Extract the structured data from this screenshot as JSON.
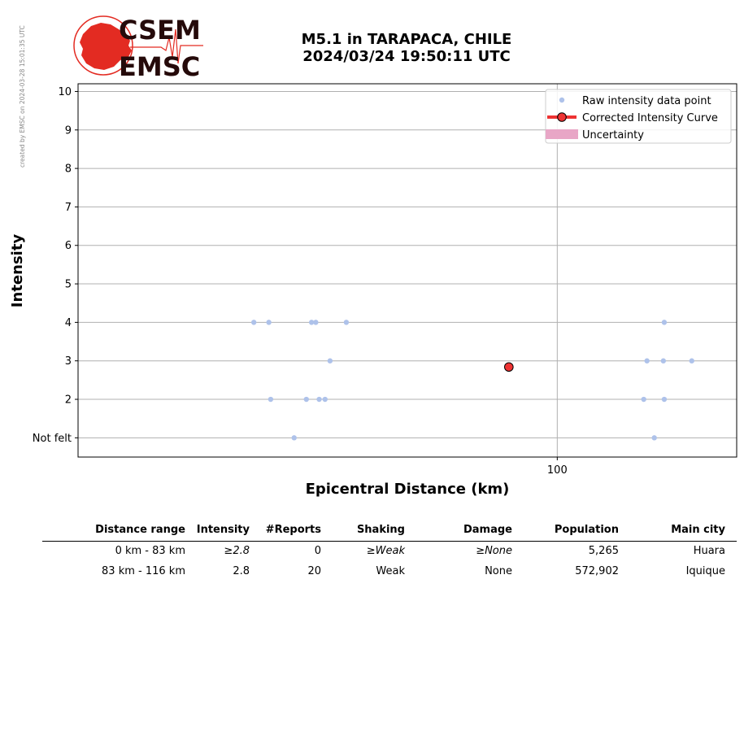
{
  "watermark": "created by EMSC on 2024-03-28 15:01:35 UTC",
  "logo": {
    "line1": "CSEM",
    "line2": "EMSC"
  },
  "title": {
    "line1": "M5.1 in TARAPACA, CHILE",
    "line2": "2024/03/24 19:50:11 UTC"
  },
  "chart_data": {
    "type": "scatter",
    "xlabel": "Epicentral Distance (km)",
    "ylabel": "Intensity",
    "x_scale": "log",
    "xlim": [
      41.5,
      139
    ],
    "ylim": [
      0.5,
      10.2
    ],
    "x_ticks": [
      {
        "value": 100,
        "label": "100"
      }
    ],
    "y_ticks": [
      {
        "value": 1,
        "label": "Not felt"
      },
      {
        "value": 2,
        "label": "2"
      },
      {
        "value": 3,
        "label": "3"
      },
      {
        "value": 4,
        "label": "4"
      },
      {
        "value": 5,
        "label": "5"
      },
      {
        "value": 6,
        "label": "6"
      },
      {
        "value": 7,
        "label": "7"
      },
      {
        "value": 8,
        "label": "8"
      },
      {
        "value": 9,
        "label": "9"
      },
      {
        "value": 10,
        "label": "10"
      }
    ],
    "grid": true,
    "legend_position": "top-right",
    "legend": [
      {
        "label": "Raw intensity data point",
        "kind": "marker",
        "color": "#aec2ea"
      },
      {
        "label": "Corrected Intensity Curve",
        "kind": "line-marker",
        "color": "#ee3333"
      },
      {
        "label": "Uncertainty",
        "kind": "band",
        "color": "#e8a6c6"
      }
    ],
    "series": [
      {
        "name": "Raw intensity data point",
        "color": "#aec2ea",
        "points": [
          {
            "x": 57.3,
            "y": 4
          },
          {
            "x": 58.9,
            "y": 4
          },
          {
            "x": 63.7,
            "y": 4
          },
          {
            "x": 64.2,
            "y": 4
          },
          {
            "x": 67.9,
            "y": 4
          },
          {
            "x": 65.9,
            "y": 3
          },
          {
            "x": 59.1,
            "y": 2
          },
          {
            "x": 63.1,
            "y": 2
          },
          {
            "x": 64.6,
            "y": 2
          },
          {
            "x": 65.3,
            "y": 2
          },
          {
            "x": 61.7,
            "y": 1
          },
          {
            "x": 121.7,
            "y": 4
          },
          {
            "x": 117.9,
            "y": 3
          },
          {
            "x": 121.5,
            "y": 3
          },
          {
            "x": 128.0,
            "y": 3
          },
          {
            "x": 117.2,
            "y": 2
          },
          {
            "x": 121.7,
            "y": 2
          },
          {
            "x": 119.5,
            "y": 1
          }
        ]
      },
      {
        "name": "Corrected Intensity Curve",
        "color": "#ee3333",
        "points": [
          {
            "x": 91.5,
            "y": 2.84
          }
        ]
      }
    ]
  },
  "table": {
    "headers": [
      "Distance range",
      "Intensity",
      "#Reports",
      "Shaking",
      "Damage",
      "Population",
      "Main city"
    ],
    "rows": [
      [
        "0 km -   83 km",
        "≥2.8",
        "0",
        "≥Weak",
        "≥None",
        "5,265",
        "Huara"
      ],
      [
        "83 km -  116 km",
        "2.8",
        "20",
        "Weak",
        "None",
        "572,902",
        "Iquique"
      ]
    ]
  }
}
